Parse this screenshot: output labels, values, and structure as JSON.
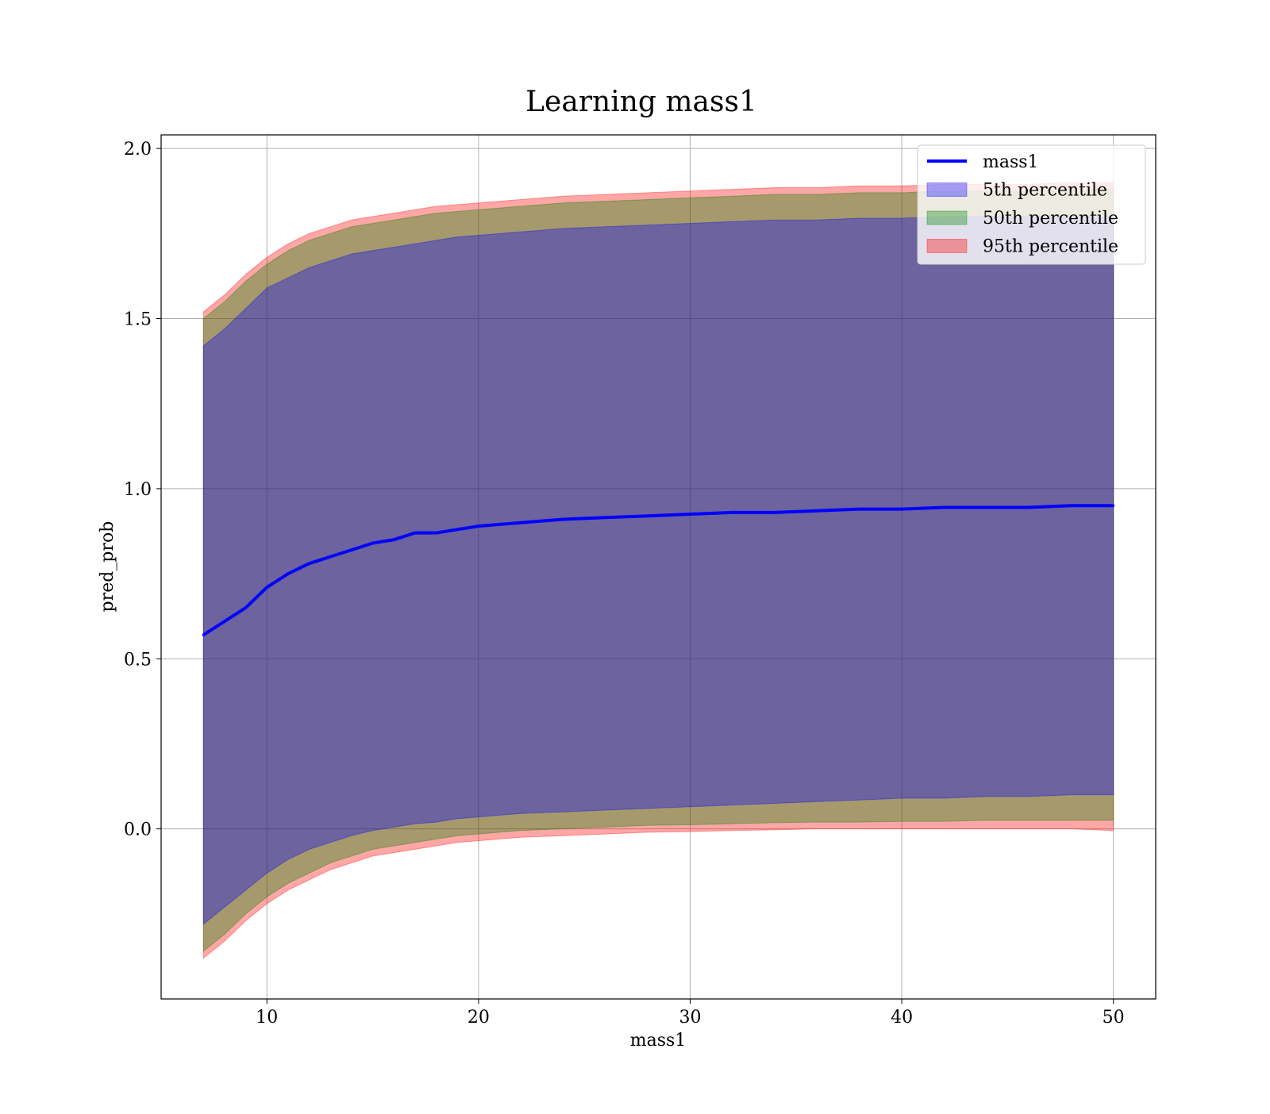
{
  "chart_data": {
    "type": "area",
    "title": "Learning mass1",
    "xlabel": "mass1",
    "ylabel": "pred_prob",
    "xlim": [
      5,
      52
    ],
    "ylim": [
      -0.5,
      2.04
    ],
    "grid": true,
    "legend_position": "top-right",
    "x_ticks": [
      "10",
      "20",
      "30",
      "40",
      "50"
    ],
    "y_ticks": [
      "0.0",
      "0.5",
      "1.0",
      "1.5",
      "2.0"
    ],
    "x": [
      7,
      8,
      9,
      10,
      11,
      12,
      13,
      14,
      15,
      16,
      17,
      18,
      19,
      20,
      22,
      24,
      26,
      28,
      30,
      32,
      34,
      36,
      38,
      40,
      42,
      44,
      46,
      48,
      50
    ],
    "series": [
      {
        "name": "mass1",
        "kind": "line",
        "color": "#0000ff",
        "values": [
          0.57,
          0.61,
          0.65,
          0.71,
          0.75,
          0.78,
          0.8,
          0.82,
          0.84,
          0.85,
          0.87,
          0.87,
          0.88,
          0.89,
          0.9,
          0.91,
          0.915,
          0.92,
          0.925,
          0.93,
          0.93,
          0.935,
          0.94,
          0.94,
          0.945,
          0.945,
          0.945,
          0.95,
          0.95
        ]
      },
      {
        "name": "5th percentile",
        "kind": "band",
        "color": "#0000ff",
        "lower": [
          -0.28,
          -0.23,
          -0.18,
          -0.13,
          -0.09,
          -0.06,
          -0.04,
          -0.02,
          -0.005,
          0.005,
          0.015,
          0.02,
          0.03,
          0.035,
          0.045,
          0.05,
          0.055,
          0.06,
          0.065,
          0.07,
          0.075,
          0.08,
          0.085,
          0.09,
          0.09,
          0.095,
          0.095,
          0.1,
          0.1
        ],
        "upper": [
          1.42,
          1.47,
          1.53,
          1.59,
          1.62,
          1.65,
          1.67,
          1.69,
          1.7,
          1.71,
          1.72,
          1.73,
          1.74,
          1.745,
          1.755,
          1.765,
          1.77,
          1.775,
          1.78,
          1.785,
          1.79,
          1.79,
          1.795,
          1.795,
          1.8,
          1.8,
          1.8,
          1.8,
          1.8
        ]
      },
      {
        "name": "50th percentile",
        "kind": "band",
        "color": "#008000",
        "lower": [
          -0.36,
          -0.31,
          -0.25,
          -0.2,
          -0.16,
          -0.13,
          -0.1,
          -0.08,
          -0.06,
          -0.05,
          -0.04,
          -0.03,
          -0.02,
          -0.015,
          -0.005,
          0.0,
          0.005,
          0.01,
          0.012,
          0.015,
          0.018,
          0.02,
          0.02,
          0.022,
          0.022,
          0.025,
          0.025,
          0.025,
          0.025
        ],
        "upper": [
          1.5,
          1.55,
          1.61,
          1.66,
          1.7,
          1.73,
          1.75,
          1.77,
          1.78,
          1.79,
          1.8,
          1.81,
          1.815,
          1.82,
          1.83,
          1.84,
          1.845,
          1.85,
          1.855,
          1.86,
          1.865,
          1.865,
          1.87,
          1.87,
          1.875,
          1.875,
          1.875,
          1.88,
          1.88
        ]
      },
      {
        "name": "95th percentile",
        "kind": "band",
        "color": "#ff0000",
        "lower": [
          -0.38,
          -0.33,
          -0.27,
          -0.22,
          -0.18,
          -0.15,
          -0.12,
          -0.1,
          -0.08,
          -0.07,
          -0.06,
          -0.05,
          -0.04,
          -0.035,
          -0.025,
          -0.02,
          -0.015,
          -0.01,
          -0.008,
          -0.005,
          -0.003,
          0.0,
          0.0,
          0.0,
          0.0,
          0.0,
          0.0,
          0.0,
          -0.005
        ],
        "upper": [
          1.52,
          1.57,
          1.63,
          1.68,
          1.72,
          1.75,
          1.77,
          1.79,
          1.8,
          1.81,
          1.82,
          1.83,
          1.835,
          1.84,
          1.85,
          1.86,
          1.865,
          1.87,
          1.875,
          1.88,
          1.885,
          1.885,
          1.89,
          1.89,
          1.895,
          1.895,
          1.895,
          1.9,
          1.9
        ]
      }
    ]
  }
}
